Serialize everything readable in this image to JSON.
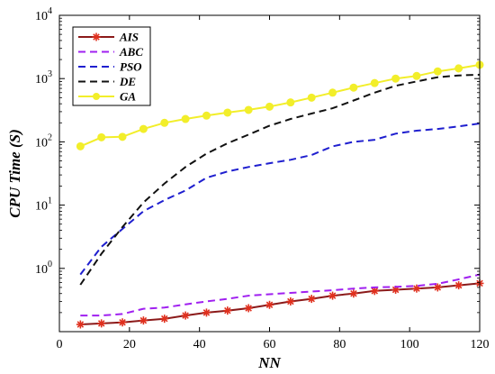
{
  "chart_data": {
    "type": "line",
    "title": "",
    "xlabel": "NN",
    "ylabel": "CPU Time (S)",
    "xscale": "linear",
    "yscale": "log",
    "xlim": [
      0,
      120
    ],
    "ylim": [
      0.1,
      10000
    ],
    "xticks": [
      0,
      20,
      40,
      60,
      80,
      100,
      120
    ],
    "xtick_labels": [
      "0",
      "20",
      "40",
      "60",
      "80",
      "100",
      "120"
    ],
    "yticks": [
      1,
      10,
      100,
      1000,
      10000
    ],
    "ytick_labels": [
      {
        "base": "10",
        "exp": "0"
      },
      {
        "base": "10",
        "exp": "1"
      },
      {
        "base": "10",
        "exp": "2"
      },
      {
        "base": "10",
        "exp": "3"
      },
      {
        "base": "10",
        "exp": "4"
      }
    ],
    "grid": false,
    "legend": "top-left",
    "x": [
      6,
      12,
      18,
      24,
      30,
      36,
      42,
      48,
      54,
      60,
      66,
      72,
      78,
      84,
      90,
      96,
      102,
      108,
      114,
      120
    ],
    "series": [
      {
        "name": "AIS",
        "color": "#8b1a1a",
        "marker": "star",
        "marker_color": "#e0301e",
        "dash": "solid",
        "values": [
          0.13,
          0.135,
          0.14,
          0.15,
          0.16,
          0.18,
          0.2,
          0.215,
          0.235,
          0.265,
          0.3,
          0.33,
          0.37,
          0.4,
          0.44,
          0.46,
          0.48,
          0.5,
          0.54,
          0.58
        ]
      },
      {
        "name": "ABC",
        "color": "#a020f0",
        "dash": "dash",
        "values": [
          0.18,
          0.18,
          0.19,
          0.23,
          0.24,
          0.27,
          0.3,
          0.33,
          0.37,
          0.39,
          0.41,
          0.43,
          0.45,
          0.48,
          0.5,
          0.51,
          0.53,
          0.57,
          0.67,
          0.8
        ]
      },
      {
        "name": "PSO",
        "color": "#1f1fcf",
        "dash": "dash",
        "values": [
          0.8,
          2.2,
          4.2,
          8.0,
          12.0,
          17.0,
          27.0,
          34.0,
          40.0,
          46.0,
          52.0,
          62.0,
          85.0,
          100.0,
          108.0,
          135.0,
          150.0,
          160.0,
          175.0,
          195.0
        ]
      },
      {
        "name": "DE",
        "color": "#111111",
        "dash": "dash",
        "values": [
          0.55,
          1.7,
          4.5,
          11.0,
          22.0,
          40.0,
          65.0,
          95.0,
          130.0,
          180.0,
          230.0,
          280.0,
          340.0,
          450.0,
          600.0,
          770.0,
          900.0,
          1050.0,
          1120.0,
          1150.0
        ]
      },
      {
        "name": "GA",
        "color": "#f2ee2a",
        "marker": "circle",
        "marker_color": "#f2ee2a",
        "dash": "solid",
        "values": [
          85,
          118,
          120,
          160,
          200,
          230,
          260,
          290,
          320,
          360,
          420,
          500,
          600,
          720,
          850,
          1000,
          1100,
          1300,
          1450,
          1650
        ]
      }
    ]
  }
}
